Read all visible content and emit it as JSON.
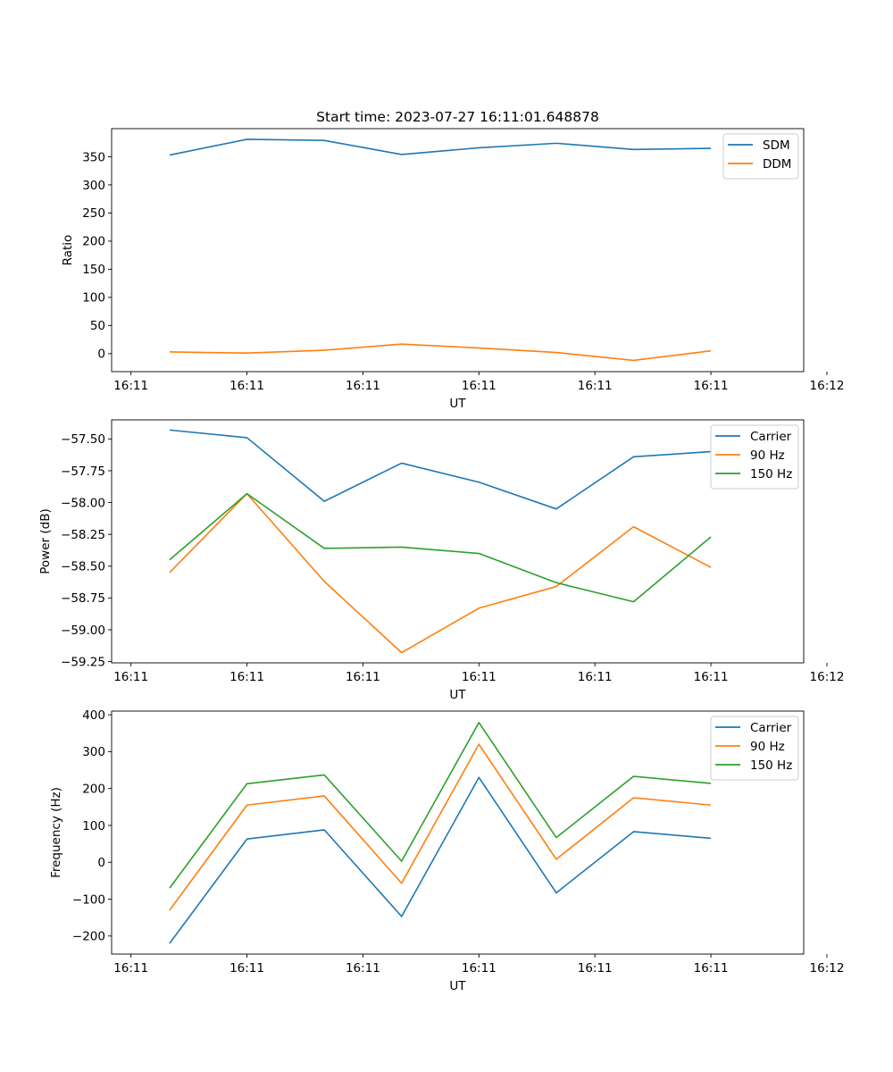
{
  "figure": {
    "title": "Start time: 2023-07-27 16:11:01.648878"
  },
  "chart_data": [
    {
      "type": "line",
      "title": "Start time: 2023-07-27 16:11:01.648878",
      "xlabel": "UT",
      "ylabel": "Ratio",
      "x": [
        1,
        2,
        3,
        4,
        5,
        6,
        7,
        8
      ],
      "xlim": [
        0.25,
        9.2
      ],
      "xticks": [
        0.5,
        2.0,
        3.5,
        5.0,
        6.5,
        8.0,
        9.5
      ],
      "xticklabels": [
        "16:11",
        "16:11",
        "16:11",
        "16:11",
        "16:11",
        "16:11",
        "16:12"
      ],
      "ylim": [
        -32,
        400
      ],
      "yticks": [
        0,
        50,
        100,
        150,
        200,
        250,
        300,
        350
      ],
      "yticklabels": [
        "0",
        "50",
        "100",
        "150",
        "200",
        "250",
        "300",
        "350"
      ],
      "legend": "top-right",
      "grid": false,
      "series": [
        {
          "name": "SDM",
          "color": "#1f77b4",
          "values": [
            353,
            381,
            379,
            354,
            366,
            374,
            363,
            365
          ]
        },
        {
          "name": "DDM",
          "color": "#ff7f0e",
          "values": [
            3,
            1,
            6,
            17,
            10,
            2,
            -12,
            5
          ]
        }
      ]
    },
    {
      "type": "line",
      "title": "",
      "xlabel": "UT",
      "ylabel": "Power (dB)",
      "x": [
        1,
        2,
        3,
        4,
        5,
        6,
        7,
        8
      ],
      "xlim": [
        0.25,
        9.2
      ],
      "xticks": [
        0.5,
        2.0,
        3.5,
        5.0,
        6.5,
        8.0,
        9.5
      ],
      "xticklabels": [
        "16:11",
        "16:11",
        "16:11",
        "16:11",
        "16:11",
        "16:11",
        "16:12"
      ],
      "ylim": [
        -59.26,
        -57.35
      ],
      "yticks": [
        -57.5,
        -57.75,
        -58.0,
        -58.25,
        -58.5,
        -58.75,
        -59.0,
        -59.25
      ],
      "yticklabels": [
        "−57.50",
        "−57.75",
        "−58.00",
        "−58.25",
        "−58.50",
        "−58.75",
        "−59.00",
        "−59.25"
      ],
      "legend": "top-right",
      "grid": false,
      "series": [
        {
          "name": "Carrier",
          "color": "#1f77b4",
          "values": [
            -57.43,
            -57.49,
            -57.99,
            -57.69,
            -57.84,
            -58.05,
            -57.64,
            -57.6
          ]
        },
        {
          "name": "90 Hz",
          "color": "#ff7f0e",
          "values": [
            -58.55,
            -57.93,
            -58.62,
            -59.18,
            -58.83,
            -58.66,
            -58.19,
            -58.51
          ]
        },
        {
          "name": "150 Hz",
          "color": "#2ca02c",
          "values": [
            -58.45,
            -57.93,
            -58.36,
            -58.35,
            -58.4,
            -58.63,
            -58.78,
            -58.27
          ]
        }
      ]
    },
    {
      "type": "line",
      "title": "",
      "xlabel": "UT",
      "ylabel": "Frequency (Hz)",
      "x": [
        1,
        2,
        3,
        4,
        5,
        6,
        7,
        8
      ],
      "xlim": [
        0.25,
        9.2
      ],
      "xticks": [
        0.5,
        2.0,
        3.5,
        5.0,
        6.5,
        8.0,
        9.5
      ],
      "xticklabels": [
        "16:11",
        "16:11",
        "16:11",
        "16:11",
        "16:11",
        "16:11",
        "16:12"
      ],
      "ylim": [
        -249,
        410
      ],
      "yticks": [
        -200,
        -100,
        0,
        100,
        200,
        300,
        400
      ],
      "yticklabels": [
        "−200",
        "−100",
        "0",
        "100",
        "200",
        "300",
        "400"
      ],
      "legend": "top-right",
      "grid": false,
      "series": [
        {
          "name": "Carrier",
          "color": "#1f77b4",
          "values": [
            -220,
            63,
            88,
            -147,
            230,
            -83,
            83,
            65
          ]
        },
        {
          "name": "90 Hz",
          "color": "#ff7f0e",
          "values": [
            -130,
            155,
            180,
            -57,
            320,
            8,
            175,
            155
          ]
        },
        {
          "name": "150 Hz",
          "color": "#2ca02c",
          "values": [
            -70,
            213,
            237,
            3,
            379,
            67,
            233,
            214
          ]
        }
      ]
    }
  ]
}
